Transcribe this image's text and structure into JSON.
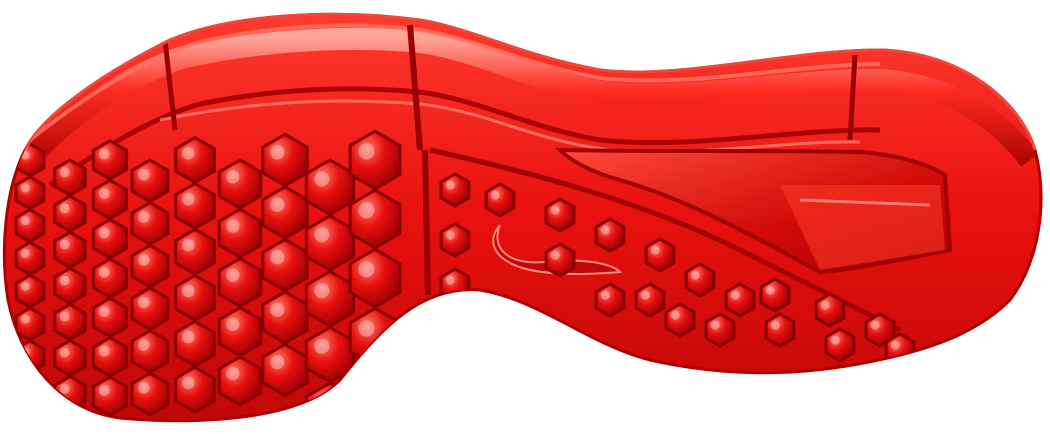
{
  "image": {
    "subject": "shoe-outsole",
    "render_style": "3d-scan"
  },
  "colors": {
    "background": "#ffffff",
    "sole_base": "#e8100e",
    "sole_dark": "#a30000",
    "sole_mid": "#d40b08",
    "highlight": "#ff6a5c",
    "specular": "#ffd2cc"
  },
  "features": {
    "heel_lugs_visible": true,
    "forefoot_lugs_visible": true,
    "midfoot_shank_visible": true,
    "swoosh_logo_visible": true
  }
}
